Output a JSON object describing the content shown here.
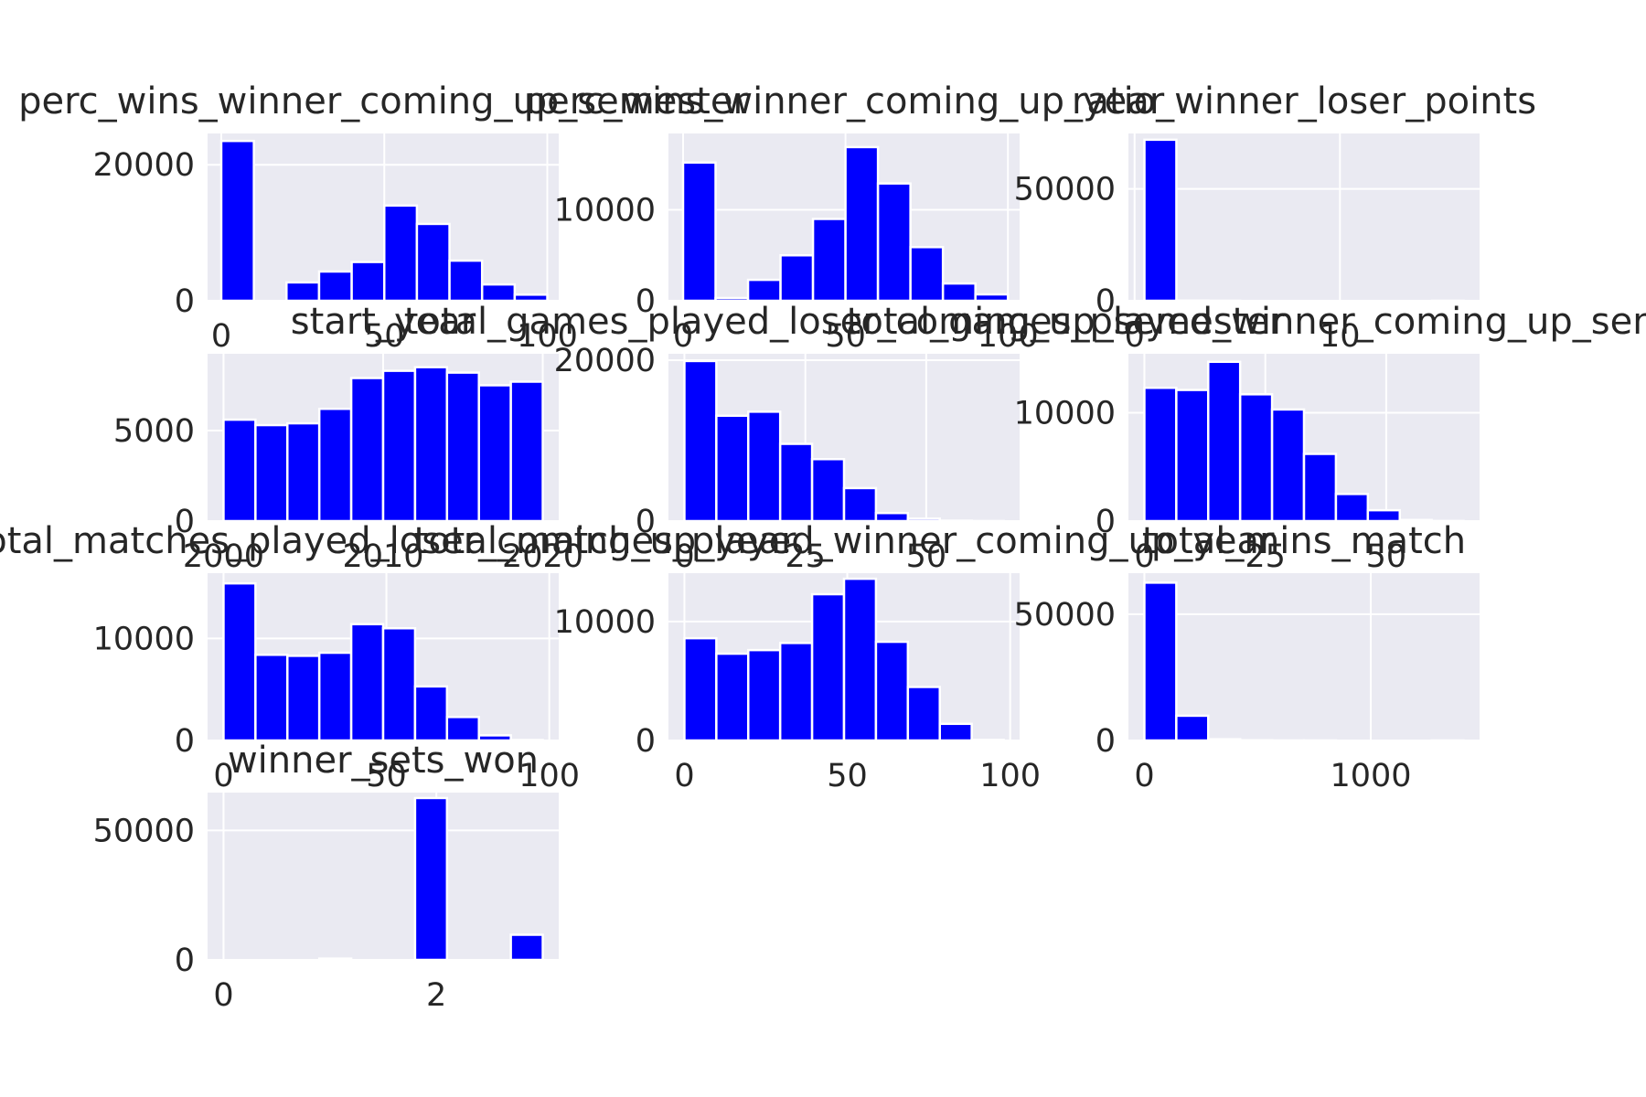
{
  "chart_data": [
    {
      "type": "histogram",
      "title": "perc_wins_winner_coming_up_semester",
      "color": "blue",
      "grid": true,
      "bins": [
        0,
        10,
        20,
        30,
        40,
        50,
        60,
        70,
        80,
        90,
        100
      ],
      "counts": [
        23500,
        0,
        2700,
        4300,
        5700,
        14000,
        11300,
        5900,
        2400,
        900
      ],
      "xlim": [
        -4.2,
        103.5
      ],
      "ylim": [
        0,
        24600
      ],
      "xticks": [
        0,
        50,
        100
      ],
      "yticks": [
        0,
        20000
      ]
    },
    {
      "type": "histogram",
      "title": "perc_wins_winner_coming_up_year",
      "color": "blue",
      "grid": true,
      "bins": [
        0,
        10,
        20,
        30,
        40,
        50,
        60,
        70,
        80,
        90,
        100
      ],
      "counts": [
        15200,
        300,
        2300,
        5000,
        9000,
        16900,
        12900,
        5900,
        1900,
        700
      ],
      "xlim": [
        -4.5,
        103.6
      ],
      "ylim": [
        0,
        18400
      ],
      "xticks": [
        0,
        50,
        100
      ],
      "yticks": [
        0,
        10000
      ]
    },
    {
      "type": "histogram",
      "title": "ratio_winner_loser_points",
      "color": "blue",
      "grid": true,
      "bins": [
        0.48,
        2.035,
        3.59,
        5.145,
        6.7,
        8.255,
        9.81,
        11.365,
        12.92,
        14.475,
        16.03
      ],
      "counts": [
        72000,
        100,
        10,
        0,
        0,
        0,
        0,
        0,
        0,
        5
      ],
      "xlim": [
        -0.3,
        16.8
      ],
      "ylim": [
        0,
        74800
      ],
      "xticks": [
        0,
        10
      ],
      "yticks": [
        0,
        50000
      ]
    },
    {
      "type": "histogram",
      "title": "start_year",
      "color": "blue",
      "grid": true,
      "bins": [
        2000,
        2002,
        2004,
        2006,
        2008,
        2010,
        2012,
        2014,
        2016,
        2018,
        2020
      ],
      "counts": [
        5600,
        5300,
        5400,
        6200,
        7900,
        8300,
        8500,
        8200,
        7500,
        7700
      ],
      "xlim": [
        1999,
        2021
      ],
      "ylim": [
        0,
        9240
      ],
      "xticks": [
        2000,
        2010,
        2020
      ],
      "yticks": [
        0,
        5000
      ]
    },
    {
      "type": "histogram",
      "title": "total_games_played_loser_coming_up_semester",
      "color": "blue",
      "grid": true,
      "bins": [
        0,
        6.6,
        13.2,
        19.8,
        26.4,
        33,
        39.6,
        46.2,
        52.8,
        59.4,
        66
      ],
      "counts": [
        19900,
        13100,
        13600,
        9600,
        7700,
        4100,
        1000,
        300,
        50,
        10
      ],
      "xlim": [
        -3.3,
        69.3
      ],
      "ylim": [
        0,
        20800
      ],
      "xticks": [
        0,
        25,
        50
      ],
      "yticks": [
        0,
        20000
      ]
    },
    {
      "type": "histogram",
      "title": "total_games_played_winner_coming_up_semester",
      "color": "blue",
      "grid": true,
      "bins": [
        0,
        6.6,
        13.2,
        19.8,
        26.4,
        33,
        39.6,
        46.2,
        52.8,
        59.4,
        66
      ],
      "counts": [
        12300,
        12100,
        14700,
        11700,
        10300,
        6200,
        2500,
        1000,
        100,
        10
      ],
      "xlim": [
        -3.3,
        69.3
      ],
      "ylim": [
        0,
        15440
      ],
      "xticks": [
        0,
        25,
        50
      ],
      "yticks": [
        0,
        10000
      ]
    },
    {
      "type": "histogram",
      "title": "total_matches_played_loser_coming_up_year",
      "color": "blue",
      "grid": true,
      "bins": [
        0,
        9.8,
        19.6,
        29.4,
        39.2,
        49,
        58.8,
        68.6,
        78.4,
        88.2,
        98
      ],
      "counts": [
        15400,
        8400,
        8300,
        8600,
        11400,
        11000,
        5300,
        2300,
        500,
        50
      ],
      "xlim": [
        -4.9,
        102.9
      ],
      "ylim": [
        0,
        16400
      ],
      "xticks": [
        0,
        50,
        100
      ],
      "yticks": [
        0,
        10000
      ]
    },
    {
      "type": "histogram",
      "title": "total_matches_played_winner_coming_up_year",
      "color": "blue",
      "grid": true,
      "bins": [
        0,
        9.8,
        19.6,
        29.4,
        39.2,
        49,
        58.8,
        68.6,
        78.4,
        88.2,
        98
      ],
      "counts": [
        8600,
        7300,
        7600,
        8200,
        12300,
        13600,
        8300,
        4500,
        1400,
        50
      ],
      "xlim": [
        -4.9,
        102.9
      ],
      "ylim": [
        0,
        14070
      ],
      "xticks": [
        0,
        50,
        100
      ],
      "yticks": [
        0,
        10000
      ]
    },
    {
      "type": "histogram",
      "title": "total_mins_match",
      "color": "blue",
      "grid": true,
      "bins": [
        0,
        141,
        282,
        423,
        564,
        705,
        846,
        987,
        1128,
        1269,
        1410
      ],
      "counts": [
        62500,
        9800,
        500,
        100,
        20,
        10,
        0,
        0,
        0,
        5
      ],
      "xlim": [
        -70.5,
        1480.5
      ],
      "ylim": [
        0,
        66250
      ],
      "xticks": [
        0,
        1000
      ],
      "yticks": [
        0,
        50000
      ]
    },
    {
      "type": "histogram",
      "title": "winner_sets_won",
      "color": "blue",
      "grid": true,
      "bins": [
        0,
        0.3,
        0.6,
        0.9,
        1.2,
        1.5,
        1.8,
        2.1,
        2.4,
        2.7,
        3
      ],
      "counts": [
        0,
        0,
        0,
        500,
        0,
        0,
        62500,
        0,
        0,
        9700
      ],
      "xlim": [
        -0.15,
        3.15
      ],
      "ylim": [
        0,
        64600
      ],
      "xticks": [
        0,
        2
      ],
      "yticks": [
        0,
        50000
      ]
    }
  ]
}
